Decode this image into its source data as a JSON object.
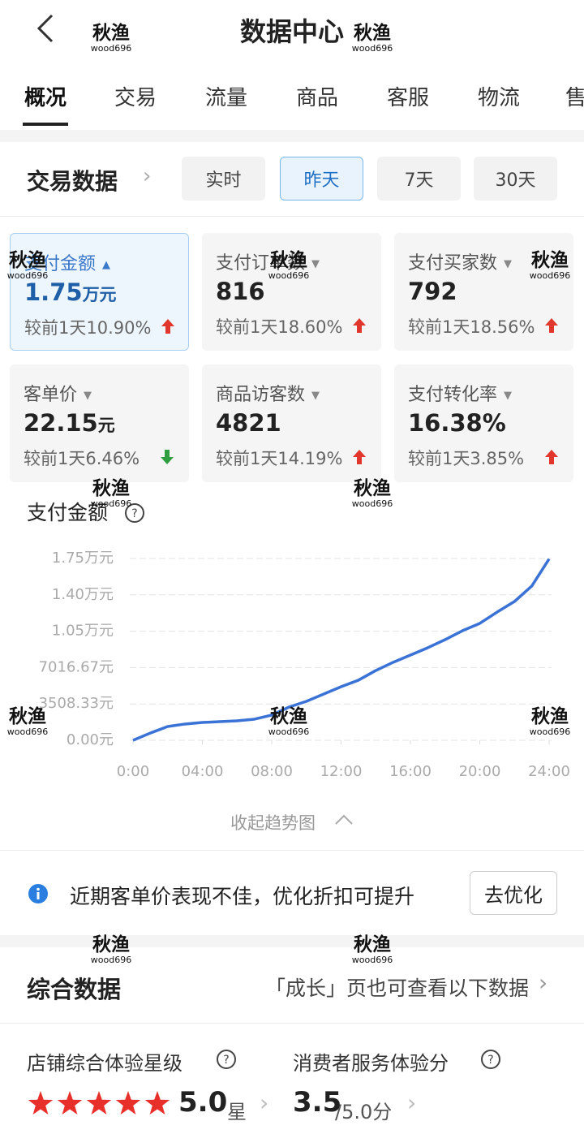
{
  "header": {
    "title": "数据中心"
  },
  "tabs": [
    "概况",
    "交易",
    "流量",
    "商品",
    "客服",
    "物流",
    "售"
  ],
  "trade": {
    "title": "交易数据",
    "ranges": [
      "实时",
      "昨天",
      "7天",
      "30天"
    ],
    "selected_range": 1
  },
  "metrics": [
    {
      "label": "支付金额",
      "value": "1.75",
      "unit": "万元",
      "compare": "较前1天10.90%",
      "trend": "up",
      "selected": true
    },
    {
      "label": "支付订单数",
      "value": "816",
      "compare": "较前1天18.60%",
      "trend": "up"
    },
    {
      "label": "支付买家数",
      "value": "792",
      "compare": "较前1天18.56%",
      "trend": "up"
    },
    {
      "label": "客单价",
      "value": "22.15",
      "unit": "元",
      "compare": "较前1天6.46%",
      "trend": "down"
    },
    {
      "label": "商品访客数",
      "value": "4821",
      "compare": "较前1天14.19%",
      "trend": "up"
    },
    {
      "label": "支付转化率",
      "value": "16.38%",
      "compare": "较前1天3.85%",
      "trend": "up"
    }
  ],
  "chart_data": {
    "type": "line",
    "title": "支付金额",
    "color": "#3a72d6",
    "x": [
      0,
      1,
      2,
      3,
      4,
      5,
      6,
      7,
      8,
      9,
      10,
      11,
      12,
      13,
      14,
      15,
      16,
      17,
      18,
      19,
      20,
      21,
      22,
      23,
      24
    ],
    "values": [
      0,
      700,
      1330,
      1570,
      1720,
      1800,
      1880,
      2040,
      2430,
      3210,
      3760,
      4460,
      5170,
      5800,
      6730,
      7520,
      8220,
      8930,
      9710,
      10570,
      11280,
      12370,
      13390,
      14880,
      17500
    ],
    "xlim": [
      0,
      24
    ],
    "xticks": [
      {
        "value": 0,
        "label": "0:00"
      },
      {
        "value": 4,
        "label": "04:00"
      },
      {
        "value": 8,
        "label": "08:00"
      },
      {
        "value": 12,
        "label": "12:00"
      },
      {
        "value": 16,
        "label": "16:00"
      },
      {
        "value": 20,
        "label": "20:00"
      },
      {
        "value": 24,
        "label": "24:00"
      }
    ],
    "ylim": [
      0,
      17541.67
    ],
    "yticks": [
      {
        "value": 0,
        "label": "0.00元"
      },
      {
        "value": 3508.33,
        "label": "3508.33元"
      },
      {
        "value": 7016.67,
        "label": "7016.67元"
      },
      {
        "value": 10525,
        "label": "1.05万元"
      },
      {
        "value": 14033.33,
        "label": "1.40万元"
      },
      {
        "value": 17541.67,
        "label": "1.75万元"
      }
    ],
    "grid": true
  },
  "collapse": "收起趋势图",
  "notice": {
    "text": "近期客单价表现不佳，优化折扣可提升",
    "button": "去优化"
  },
  "overall": {
    "title": "综合数据",
    "link": "「成长」页也可查看以下数据"
  },
  "scores": [
    {
      "label": "店铺综合体验星级",
      "value": "5.0",
      "unit": "星",
      "stars": 5
    },
    {
      "label": "消费者服务体验分",
      "value": "3.5",
      "unit": "/5.0分"
    }
  ],
  "watermark": {
    "name": "秋渔",
    "id": "wood696"
  }
}
